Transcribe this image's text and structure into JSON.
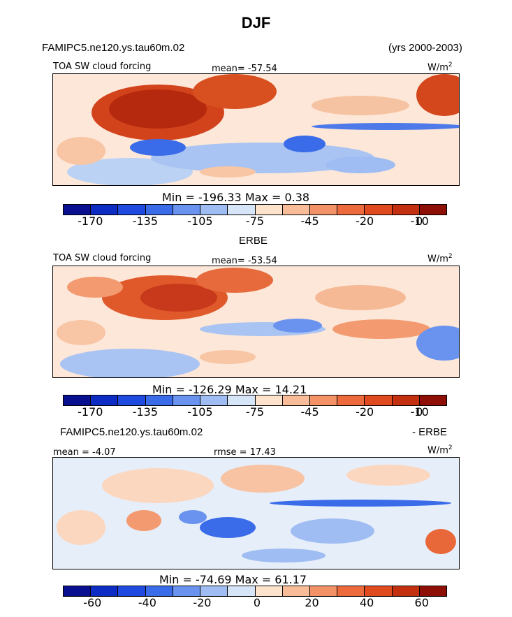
{
  "figure": {
    "season": "DJF",
    "model_name": "FAMIPC5.ne120.ys.tau60m.02",
    "years": "(yrs 2000-2003)",
    "diff_model_name": "FAMIPC5.ne120.ys.tau60m.02",
    "diff_suffix": "- ERBE"
  },
  "chart_data": [
    {
      "type": "heatmap",
      "panel": "model",
      "field_label": "TOA SW cloud forcing",
      "units": "W/m",
      "units_exp": "2",
      "stat_text": "mean= -57.54",
      "mean": -57.54,
      "minmax_text": "Min = -196.33 Max =   0.38",
      "min": -196.33,
      "max": 0.38,
      "colorbar_ticks": [
        "-170",
        "-135",
        "-105",
        "-75",
        "-45",
        "-20",
        "-10",
        "0"
      ],
      "colorbar_colors": [
        "#08108f",
        "#0c2cc4",
        "#1f4ae0",
        "#3a6be8",
        "#6a93ef",
        "#9fbdf3",
        "#d6e5f8",
        "#fde2cc",
        "#f8bc98",
        "#f39266",
        "#ec6a3c",
        "#e04a1f",
        "#c23010",
        "#8e0f05"
      ]
    },
    {
      "type": "heatmap",
      "panel": "observation",
      "panel_title": "ERBE",
      "field_label": "TOA SW cloud forcing",
      "units": "W/m",
      "units_exp": "2",
      "stat_text": "mean= -53.54",
      "mean": -53.54,
      "minmax_text": "Min = -126.29 Max =  14.21",
      "min": -126.29,
      "max": 14.21,
      "colorbar_ticks": [
        "-170",
        "-135",
        "-105",
        "-75",
        "-45",
        "-20",
        "-10",
        "0"
      ],
      "colorbar_colors": [
        "#08108f",
        "#0c2cc4",
        "#1f4ae0",
        "#3a6be8",
        "#6a93ef",
        "#9fbdf3",
        "#d6e5f8",
        "#fde2cc",
        "#f8bc98",
        "#f39266",
        "#ec6a3c",
        "#e04a1f",
        "#c23010",
        "#8e0f05"
      ]
    },
    {
      "type": "heatmap",
      "panel": "difference",
      "stat_text": "mean = -4.07",
      "mean": -4.07,
      "rmse_text": "rmse =  17.43",
      "rmse": 17.43,
      "units": "W/m",
      "units_exp": "2",
      "minmax_text": "Min = -74.69 Max =  61.17",
      "min": -74.69,
      "max": 61.17,
      "colorbar_ticks": [
        "-60",
        "-40",
        "-20",
        "0",
        "20",
        "40",
        "60"
      ],
      "colorbar_colors": [
        "#08108f",
        "#0c2cc4",
        "#1f4ae0",
        "#3a6be8",
        "#6a93ef",
        "#9fbdf3",
        "#d6e5f8",
        "#fde2cc",
        "#f8bc98",
        "#f39266",
        "#ec6a3c",
        "#e04a1f",
        "#c23010",
        "#8e0f05"
      ]
    }
  ]
}
